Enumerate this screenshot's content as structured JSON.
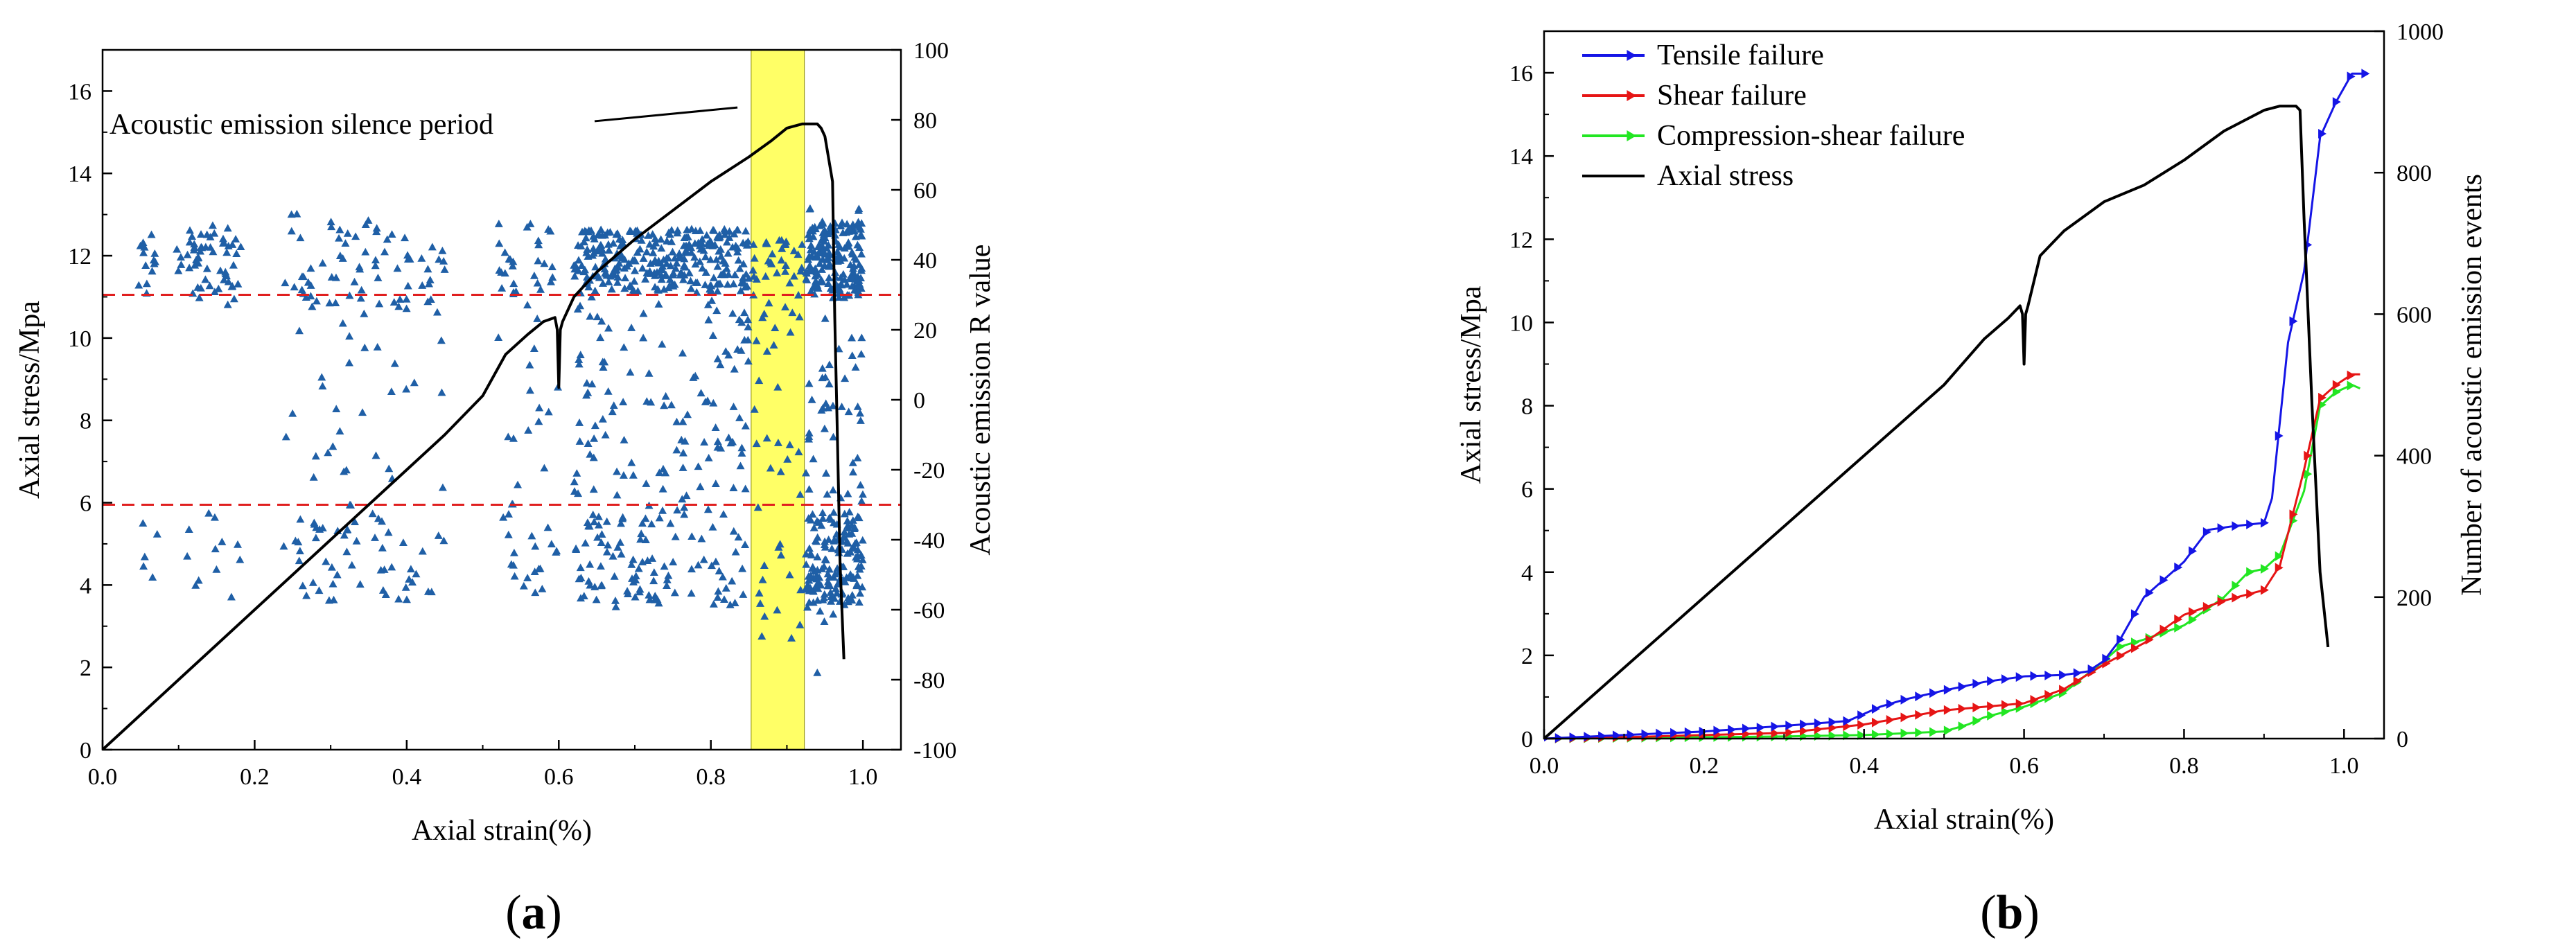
{
  "panels": {
    "a": {
      "label_open": "(",
      "label_letter": "a",
      "label_close": ")"
    },
    "b": {
      "label_open": "(",
      "label_letter": "b",
      "label_close": ")"
    }
  },
  "chart_data": [
    {
      "type": "scatter",
      "id": "a",
      "title": "",
      "xlabel": "Axial strain(%)",
      "ylabel": "Axial stress/Mpa",
      "y2label": "Acoustic emission R value",
      "xlim": [
        0.0,
        1.05
      ],
      "ylim": [
        0,
        17
      ],
      "y2lim": [
        -100,
        100
      ],
      "xticks": [
        "0.0",
        "0.2",
        "0.4",
        "0.6",
        "0.8",
        "1.0"
      ],
      "yticks": [
        "0",
        "2",
        "4",
        "6",
        "8",
        "10",
        "12",
        "14",
        "16"
      ],
      "y2ticks": [
        "-100",
        "-80",
        "-60",
        "-40",
        "-20",
        "0",
        "20",
        "40",
        "60",
        "80",
        "100"
      ],
      "annotation": "Acoustic emission silence period",
      "silence_band": [
        0.853,
        0.923
      ],
      "threshold_lines_R": [
        30,
        -30
      ],
      "colors": {
        "scatter": "#1f5fa6",
        "stress": "#000000",
        "band": "#ffff66",
        "threshold": "#e01f1f"
      },
      "series": [
        {
          "name": "Axial stress",
          "axis": "left",
          "x": [
            0.0,
            0.05,
            0.1,
            0.15,
            0.2,
            0.25,
            0.3,
            0.35,
            0.4,
            0.45,
            0.5,
            0.53,
            0.56,
            0.58,
            0.595,
            0.598,
            0.6,
            0.602,
            0.605,
            0.62,
            0.65,
            0.7,
            0.75,
            0.8,
            0.85,
            0.88,
            0.9,
            0.92,
            0.94,
            0.945,
            0.95,
            0.96,
            0.963,
            0.966,
            0.97,
            0.975
          ],
          "y": [
            0.0,
            0.85,
            1.7,
            2.55,
            3.4,
            4.25,
            5.1,
            5.95,
            6.8,
            7.65,
            8.6,
            9.6,
            10.1,
            10.4,
            10.5,
            10.2,
            8.8,
            10.2,
            10.4,
            11.0,
            11.6,
            12.4,
            13.1,
            13.8,
            14.4,
            14.8,
            15.1,
            15.2,
            15.2,
            15.1,
            14.9,
            13.8,
            10.5,
            8.0,
            4.5,
            2.2
          ]
        },
        {
          "name": "Acoustic emission R value",
          "axis": "right",
          "generation": "dense scattered points (≈1400) between R −78 and 70 over strain 0.05–1.0, clustered at R ≈ 40 and R ≈ −45 bands, sparse inside the silence period"
        }
      ]
    },
    {
      "type": "line",
      "id": "b",
      "title": "",
      "xlabel": "Axial strain(%)",
      "ylabel": "Axial stress/Mpa",
      "y2label": "Number of acoustic emission events",
      "xlim": [
        0.0,
        1.05
      ],
      "ylim": [
        0,
        17
      ],
      "y2lim": [
        0,
        1000
      ],
      "xticks": [
        "0.0",
        "0.2",
        "0.4",
        "0.6",
        "0.8",
        "1.0"
      ],
      "yticks": [
        "0",
        "2",
        "4",
        "6",
        "8",
        "10",
        "12",
        "14",
        "16"
      ],
      "y2ticks": [
        "0",
        "200",
        "400",
        "600",
        "800",
        "1000"
      ],
      "legend_position": "top-left",
      "series": [
        {
          "name": "Tensile failure",
          "axis": "right",
          "color": "#1515e6",
          "x": [
            0.0,
            0.1,
            0.2,
            0.3,
            0.38,
            0.4,
            0.42,
            0.45,
            0.5,
            0.55,
            0.6,
            0.65,
            0.68,
            0.7,
            0.72,
            0.75,
            0.78,
            0.8,
            0.83,
            0.86,
            0.9,
            0.91,
            0.93,
            0.95,
            0.97,
            0.99,
            1.01,
            1.03
          ],
          "y": [
            0,
            5,
            10,
            18,
            25,
            35,
            45,
            55,
            68,
            80,
            88,
            90,
            95,
            110,
            140,
            200,
            230,
            250,
            295,
            300,
            305,
            340,
            560,
            660,
            850,
            900,
            940,
            940
          ]
        },
        {
          "name": "Shear failure",
          "axis": "right",
          "color": "#e61515",
          "x": [
            0.0,
            0.1,
            0.2,
            0.3,
            0.4,
            0.45,
            0.5,
            0.55,
            0.6,
            0.65,
            0.7,
            0.75,
            0.8,
            0.85,
            0.9,
            0.92,
            0.95,
            0.97,
            0.99,
            1.01,
            1.02
          ],
          "y": [
            0,
            2,
            5,
            8,
            20,
            30,
            40,
            45,
            50,
            70,
            105,
            135,
            175,
            195,
            210,
            245,
            380,
            480,
            500,
            515,
            515
          ]
        },
        {
          "name": "Compression-shear failure",
          "axis": "right",
          "color": "#22e622",
          "x": [
            0.0,
            0.1,
            0.2,
            0.3,
            0.4,
            0.5,
            0.53,
            0.55,
            0.6,
            0.65,
            0.7,
            0.72,
            0.75,
            0.8,
            0.85,
            0.88,
            0.9,
            0.92,
            0.95,
            0.97,
            0.99,
            1.01,
            1.02
          ],
          "y": [
            0,
            1,
            2,
            3,
            5,
            10,
            20,
            30,
            45,
            65,
            110,
            130,
            140,
            160,
            200,
            235,
            240,
            260,
            350,
            470,
            490,
            500,
            495
          ]
        },
        {
          "name": "Axial stress",
          "axis": "left",
          "color": "#000000",
          "x": [
            0.0,
            0.1,
            0.2,
            0.3,
            0.4,
            0.5,
            0.55,
            0.58,
            0.595,
            0.598,
            0.6,
            0.602,
            0.605,
            0.62,
            0.65,
            0.7,
            0.75,
            0.8,
            0.85,
            0.9,
            0.92,
            0.94,
            0.945,
            0.95,
            0.96,
            0.97,
            0.98
          ],
          "y": [
            0.0,
            1.7,
            3.4,
            5.1,
            6.8,
            8.5,
            9.6,
            10.1,
            10.4,
            10.2,
            9.0,
            10.2,
            10.4,
            11.6,
            12.2,
            12.9,
            13.3,
            13.9,
            14.6,
            15.1,
            15.2,
            15.2,
            15.1,
            12.5,
            8.0,
            4.0,
            2.2
          ]
        }
      ]
    }
  ]
}
